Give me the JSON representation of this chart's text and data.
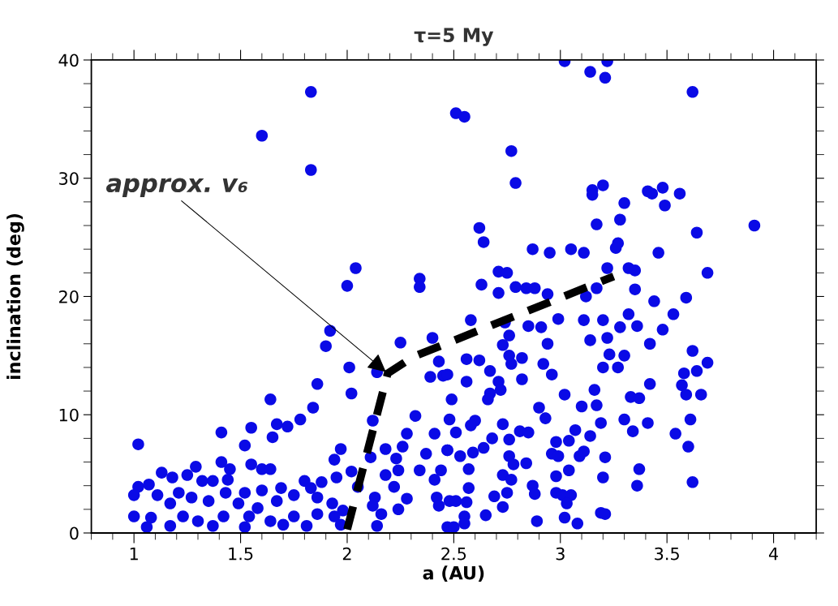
{
  "chart_data": {
    "type": "scatter",
    "title": "τ=5 My",
    "xlabel": "a (AU)",
    "ylabel": "inclination (deg)",
    "xlim": [
      0.8,
      4.2
    ],
    "ylim": [
      0,
      40
    ],
    "xticks": [
      1,
      1.5,
      2,
      2.5,
      3,
      3.5,
      4
    ],
    "yticks": [
      0,
      10,
      20,
      30,
      40
    ],
    "grid": false,
    "annotations": [
      {
        "text": "approx. v₆",
        "x": 2.19,
        "y": 13.5
      }
    ],
    "series": [
      {
        "color": "#0a0ae6",
        "marker": "circle",
        "x": [
          1.6,
          1.83,
          1.83,
          2.51,
          2.55,
          3.02,
          3.22,
          3.14,
          3.21,
          3.62,
          2.77,
          2.79,
          3.15,
          3.15,
          3.2,
          3.41,
          3.43,
          3.48,
          3.49,
          3.56,
          3.3,
          3.28,
          3.17,
          2.62,
          2.64,
          3.91,
          3.64,
          2.87,
          2.95,
          3.05,
          3.11,
          3.27,
          3.26,
          3.46,
          2.71,
          2.75,
          3.22,
          3.32,
          3.35,
          3.69,
          2.63,
          2.71,
          2.79,
          2.84,
          2.88,
          2.94,
          3.12,
          3.17,
          3.35,
          3.44,
          3.59,
          2.04,
          2.0,
          2.34,
          2.34,
          1.92,
          1.9,
          2.01,
          2.14,
          2.25,
          2.4,
          2.43,
          2.39,
          2.45,
          2.02,
          1.86,
          1.84,
          1.78,
          1.72,
          1.67,
          1.64,
          1.65,
          1.55,
          1.52,
          1.41,
          1.02,
          2.12,
          2.32,
          2.28,
          2.26,
          2.41,
          2.47,
          1.97,
          1.94,
          2.18,
          2.11,
          2.23,
          2.37,
          2.44,
          2.24,
          2.02,
          1.95,
          2.18,
          2.05,
          2.34,
          2.41,
          2.22,
          2.13,
          2.28,
          2.42,
          2.43,
          2.48,
          2.16,
          2.24,
          2.14,
          2.47,
          2.12,
          1.98,
          1.29,
          1.13,
          1.18,
          1.25,
          1.41,
          1.45,
          1.55,
          1.6,
          1.64,
          1.32,
          1.37,
          1.44,
          1.02,
          1.07,
          1.8,
          1.88,
          1.83,
          1.0,
          1.11,
          1.21,
          1.27,
          1.43,
          1.52,
          1.6,
          1.69,
          1.75,
          1.35,
          1.17,
          1.49,
          1.67,
          1.86,
          1.93,
          1.58,
          1.0,
          1.08,
          1.06,
          1.17,
          1.23,
          1.3,
          1.37,
          1.42,
          1.52,
          1.54,
          1.64,
          1.7,
          1.75,
          1.81,
          1.86,
          1.94,
          1.97,
          2.58,
          2.74,
          2.76,
          2.73,
          2.76,
          2.82,
          2.77,
          2.85,
          2.91,
          2.94,
          2.99,
          3.11,
          3.2,
          3.14,
          3.22,
          3.28,
          3.32,
          3.36,
          3.53,
          3.48,
          3.42,
          3.23,
          3.3,
          3.2,
          3.27,
          3.62,
          3.69,
          3.64,
          3.58,
          3.57,
          3.59,
          3.66,
          3.42,
          3.33,
          3.37,
          3.61,
          3.54,
          3.6,
          3.41,
          3.3,
          3.34,
          3.37,
          3.36,
          3.62,
          3.16,
          3.17,
          3.1,
          3.02,
          3.19,
          3.14,
          3.07,
          3.04,
          2.98,
          2.96,
          2.99,
          3.09,
          3.11,
          3.21,
          3.04,
          2.98,
          3.2,
          2.98,
          3.01,
          3.05,
          3.03,
          3.02,
          3.08,
          3.19,
          3.21,
          2.89,
          2.9,
          2.93,
          2.92,
          2.96,
          2.82,
          2.71,
          2.72,
          2.67,
          2.66,
          2.67,
          2.56,
          2.56,
          2.62,
          2.49,
          2.47,
          2.48,
          2.6,
          2.58,
          2.51,
          2.47,
          2.53,
          2.59,
          2.64,
          2.68,
          2.73,
          2.76,
          2.81,
          2.85,
          2.76,
          2.78,
          2.84,
          2.57,
          2.73,
          2.77,
          2.87,
          2.88,
          2.75,
          2.57,
          2.51,
          2.56,
          2.69,
          2.73,
          2.65,
          2.55,
          2.55,
          2.5
        ],
        "values": [
          33.6,
          37.3,
          30.7,
          35.5,
          35.2,
          39.9,
          39.9,
          39.0,
          38.5,
          37.3,
          32.3,
          29.6,
          29.0,
          28.6,
          29.4,
          28.9,
          28.7,
          29.2,
          27.7,
          28.7,
          27.9,
          26.5,
          26.1,
          25.8,
          24.6,
          26.0,
          25.4,
          24.0,
          23.7,
          24.0,
          23.7,
          24.5,
          24.1,
          23.7,
          22.1,
          22.0,
          22.4,
          22.4,
          22.2,
          22.0,
          21.0,
          20.3,
          20.8,
          20.7,
          20.7,
          20.2,
          20.0,
          20.7,
          20.6,
          19.6,
          19.9,
          22.4,
          20.9,
          21.5,
          20.8,
          17.1,
          15.8,
          14.0,
          13.6,
          16.1,
          16.5,
          14.5,
          13.2,
          13.3,
          11.8,
          12.6,
          10.6,
          9.6,
          9.0,
          9.2,
          11.3,
          8.1,
          8.9,
          7.4,
          8.5,
          7.5,
          9.5,
          9.9,
          8.4,
          7.3,
          8.4,
          7.0,
          7.1,
          6.2,
          7.1,
          6.4,
          6.3,
          6.7,
          5.3,
          5.3,
          5.2,
          4.7,
          4.9,
          3.9,
          5.3,
          4.5,
          3.9,
          3.0,
          2.9,
          3.0,
          2.3,
          2.7,
          1.6,
          2.0,
          0.6,
          0.5,
          2.3,
          1.9,
          5.6,
          5.1,
          4.7,
          4.9,
          6.0,
          5.4,
          5.8,
          5.4,
          5.4,
          4.4,
          4.4,
          4.5,
          3.9,
          4.1,
          4.4,
          4.3,
          3.8,
          3.2,
          3.2,
          3.4,
          3.0,
          3.4,
          3.4,
          3.6,
          3.8,
          3.2,
          2.7,
          2.5,
          2.5,
          2.7,
          3.0,
          2.5,
          2.1,
          1.4,
          1.3,
          0.5,
          0.6,
          1.4,
          1.0,
          0.6,
          1.4,
          0.5,
          1.4,
          1.0,
          0.7,
          1.4,
          0.6,
          1.6,
          1.4,
          0.7,
          18.0,
          17.8,
          16.7,
          15.9,
          15.0,
          14.8,
          14.3,
          17.5,
          17.4,
          16.0,
          18.1,
          18.0,
          18.0,
          16.3,
          16.5,
          17.4,
          18.5,
          17.5,
          18.5,
          17.2,
          16.0,
          15.1,
          15.0,
          14.0,
          14.0,
          15.4,
          14.4,
          13.7,
          13.5,
          12.5,
          11.7,
          11.7,
          12.6,
          11.5,
          11.4,
          9.6,
          8.4,
          7.3,
          9.3,
          9.6,
          8.6,
          5.4,
          4.0,
          4.3,
          12.1,
          10.8,
          10.7,
          11.7,
          9.3,
          8.2,
          8.7,
          7.8,
          7.7,
          6.7,
          6.5,
          6.5,
          6.9,
          6.4,
          5.3,
          4.8,
          4.7,
          3.4,
          3.2,
          3.2,
          2.5,
          1.3,
          0.8,
          1.7,
          1.6,
          1.0,
          10.6,
          9.7,
          14.3,
          13.4,
          13.0,
          12.8,
          12.1,
          11.8,
          11.3,
          13.7,
          12.8,
          14.7,
          14.6,
          11.3,
          13.4,
          9.6,
          9.5,
          9.1,
          8.5,
          7.0,
          6.5,
          6.8,
          7.2,
          8.0,
          9.2,
          7.9,
          8.6,
          8.5,
          6.5,
          5.8,
          5.9,
          5.4,
          4.9,
          4.5,
          4.0,
          3.3,
          3.4,
          3.8,
          2.7,
          2.6,
          3.1,
          2.2,
          1.5,
          1.4,
          0.8,
          0.5
        ]
      },
      {
        "type": "line",
        "color": "#000000",
        "line_style": "dashed",
        "x": [
          2.0,
          2.19,
          2.31,
          3.25
        ],
        "values": [
          0.3,
          13.5,
          14.9,
          21.7
        ]
      }
    ]
  }
}
